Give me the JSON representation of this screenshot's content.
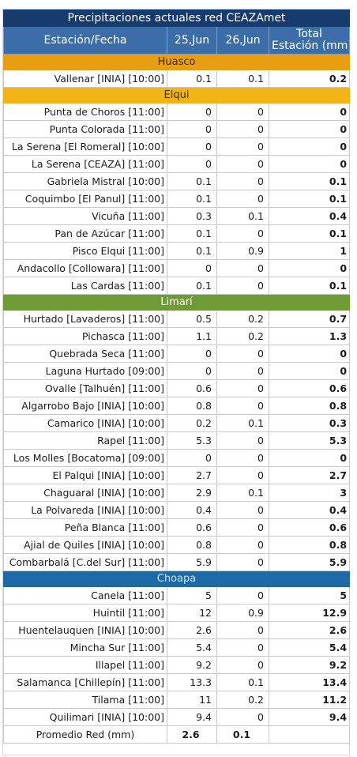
{
  "title": "Precipitaciones actuales red CEAZAmet",
  "header": {
    "station": "Estación/Fecha",
    "day1": "25,Jun",
    "day2": "26,Jun",
    "total_line1": "Total",
    "total_line2": "Estación (mm)"
  },
  "colors": {
    "title_bg": "#173b6c",
    "header_bg": "#3b6ea8",
    "huasco": "#e79e13",
    "elqui": "#f4b314",
    "limari": "#6f9b36",
    "choapa": "#1d6aa8"
  },
  "regions": [
    {
      "key": "huasco",
      "name": "Huasco",
      "rows": [
        {
          "station": "Vallenar [INIA] [10:00]",
          "d1": "0.1",
          "d2": "0.1",
          "total": "0.2"
        }
      ]
    },
    {
      "key": "elqui",
      "name": "Elqui",
      "rows": [
        {
          "station": "Punta de Choros [11:00]",
          "d1": "0",
          "d2": "0",
          "total": "0"
        },
        {
          "station": "Punta Colorada [11:00]",
          "d1": "0",
          "d2": "0",
          "total": "0"
        },
        {
          "station": "La Serena [El Romeral] [10:00]",
          "d1": "0",
          "d2": "0",
          "total": "0"
        },
        {
          "station": "La Serena [CEAZA] [11:00]",
          "d1": "0",
          "d2": "0",
          "total": "0"
        },
        {
          "station": "Gabriela Mistral [10:00]",
          "d1": "0.1",
          "d2": "0",
          "total": "0.1"
        },
        {
          "station": "Coquimbo [El Panul] [11:00]",
          "d1": "0.1",
          "d2": "0",
          "total": "0.1"
        },
        {
          "station": "Vicuña [11:00]",
          "d1": "0.3",
          "d2": "0.1",
          "total": "0.4"
        },
        {
          "station": "Pan de Azúcar [11:00]",
          "d1": "0.1",
          "d2": "0",
          "total": "0.1"
        },
        {
          "station": "Pisco Elqui [11:00]",
          "d1": "0.1",
          "d2": "0.9",
          "total": "1"
        },
        {
          "station": "Andacollo [Collowara] [11:00]",
          "d1": "0",
          "d2": "0",
          "total": "0"
        },
        {
          "station": "Las Cardas [11:00]",
          "d1": "0.1",
          "d2": "0",
          "total": "0.1"
        }
      ]
    },
    {
      "key": "limari",
      "name": "Limarí",
      "rows": [
        {
          "station": "Hurtado [Lavaderos] [11:00]",
          "d1": "0.5",
          "d2": "0.2",
          "total": "0.7"
        },
        {
          "station": "Pichasca [11:00]",
          "d1": "1.1",
          "d2": "0.2",
          "total": "1.3"
        },
        {
          "station": "Quebrada Seca [11:00]",
          "d1": "0",
          "d2": "0",
          "total": "0"
        },
        {
          "station": "Laguna Hurtado [09:00]",
          "d1": "0",
          "d2": "0",
          "total": "0"
        },
        {
          "station": "Ovalle [Talhuén] [11:00]",
          "d1": "0.6",
          "d2": "0",
          "total": "0.6"
        },
        {
          "station": "Algarrobo Bajo [INIA] [10:00]",
          "d1": "0.8",
          "d2": "0",
          "total": "0.8"
        },
        {
          "station": "Camarico [INIA] [10:00]",
          "d1": "0.2",
          "d2": "0.1",
          "total": "0.3"
        },
        {
          "station": "Rapel [11:00]",
          "d1": "5.3",
          "d2": "0",
          "total": "5.3"
        },
        {
          "station": "Los Molles [Bocatoma] [09:00]",
          "d1": "0",
          "d2": "0",
          "total": "0"
        },
        {
          "station": "El Palqui [INIA] [10:00]",
          "d1": "2.7",
          "d2": "0",
          "total": "2.7"
        },
        {
          "station": "Chaguaral [INIA] [10:00]",
          "d1": "2.9",
          "d2": "0.1",
          "total": "3"
        },
        {
          "station": "La Polvareda [INIA] [10:00]",
          "d1": "0.4",
          "d2": "0",
          "total": "0.4"
        },
        {
          "station": "Peña Blanca [11:00]",
          "d1": "0.6",
          "d2": "0",
          "total": "0.6"
        },
        {
          "station": "Ajial de Quiles [INIA] [10:00]",
          "d1": "0.8",
          "d2": "0",
          "total": "0.8"
        },
        {
          "station": "Combarbalá [C.del Sur] [11:00]",
          "d1": "5.9",
          "d2": "0",
          "total": "5.9"
        }
      ]
    },
    {
      "key": "choapa",
      "name": "Choapa",
      "rows": [
        {
          "station": "Canela [11:00]",
          "d1": "5",
          "d2": "0",
          "total": "5"
        },
        {
          "station": "Huintil [11:00]",
          "d1": "12",
          "d2": "0.9",
          "total": "12.9"
        },
        {
          "station": "Huentelauquen [INIA] [10:00]",
          "d1": "2.6",
          "d2": "0",
          "total": "2.6"
        },
        {
          "station": "Mincha Sur [11:00]",
          "d1": "5.4",
          "d2": "0",
          "total": "5.4"
        },
        {
          "station": "Illapel [11:00]",
          "d1": "9.2",
          "d2": "0",
          "total": "9.2"
        },
        {
          "station": "Salamanca [Chillepín] [11:00]",
          "d1": "13.3",
          "d2": "0.1",
          "total": "13.4"
        },
        {
          "station": "Tilama [11:00]",
          "d1": "11",
          "d2": "0.2",
          "total": "11.2"
        },
        {
          "station": "Quilimari [INIA] [10:00]",
          "d1": "9.4",
          "d2": "0",
          "total": "9.4"
        }
      ]
    }
  ],
  "average": {
    "label": "Promedio Red (mm)",
    "d1": "2.6",
    "d2": "0.1",
    "total": ""
  }
}
